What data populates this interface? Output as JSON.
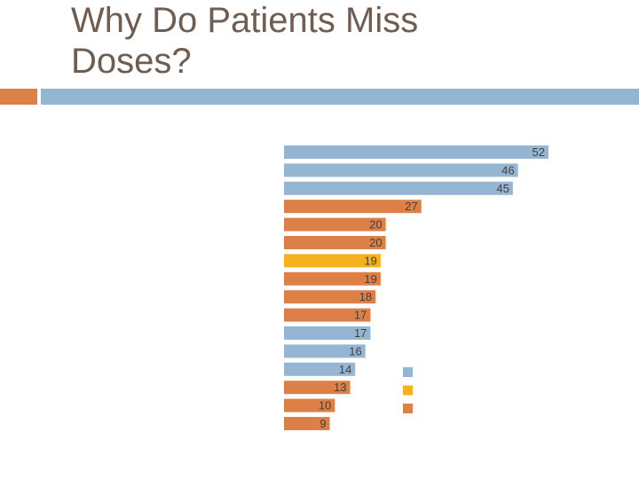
{
  "slide": {
    "title": "Why Do Patients Miss\nDoses?"
  },
  "colors": {
    "title": "#6f5d52",
    "accent_orange": "#dd8047",
    "accent_blue": "#94b6d2",
    "accent_gold": "#f5b21e"
  },
  "chart_data": {
    "type": "bar",
    "orientation": "horizontal",
    "title": "",
    "xlabel": "",
    "ylabel": "",
    "categories": [
      "",
      "",
      "",
      "",
      "",
      "",
      "",
      "",
      "",
      "",
      "",
      "",
      "",
      "",
      "",
      ""
    ],
    "values": [
      52,
      46,
      45,
      27,
      20,
      20,
      19,
      19,
      18,
      17,
      17,
      16,
      14,
      13,
      10,
      9
    ],
    "series_index": [
      0,
      0,
      0,
      2,
      2,
      2,
      1,
      2,
      2,
      2,
      0,
      0,
      0,
      2,
      2,
      2
    ],
    "series": [
      {
        "name": "",
        "color": "#94b6d2"
      },
      {
        "name": "",
        "color": "#f5b21e"
      },
      {
        "name": "",
        "color": "#dd8047"
      }
    ],
    "xlim": [
      0,
      52
    ],
    "grid": false,
    "legend": "right"
  }
}
